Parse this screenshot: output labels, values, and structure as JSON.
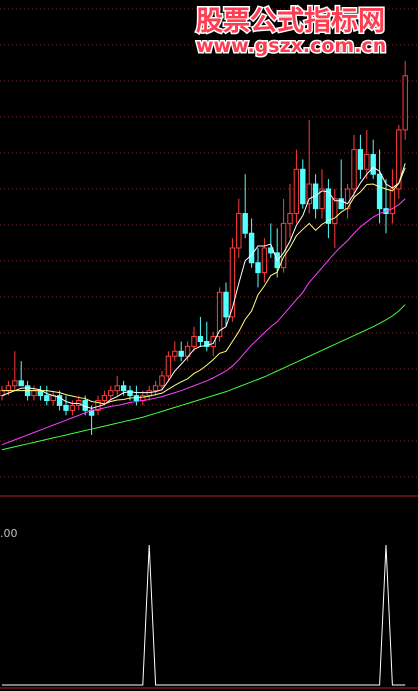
{
  "watermark": {
    "title": "股票公式指标网",
    "url": "www.gszx.com.cn"
  },
  "chart_data": [
    {
      "type": "candlestick",
      "up_color": "#ff3c3c",
      "down_color": "#54ffff",
      "ylim": [
        0,
        100
      ],
      "open": [
        20,
        21,
        22,
        23,
        22,
        20,
        21,
        20,
        19,
        20,
        18,
        17,
        18,
        19,
        17,
        17,
        19,
        20,
        21,
        22,
        21,
        20,
        19,
        20,
        21,
        22,
        24,
        28,
        29,
        28,
        30,
        32,
        31,
        30,
        32,
        41,
        36,
        50,
        57,
        53,
        47,
        45,
        50,
        49,
        46,
        55,
        57,
        66,
        59,
        63,
        58,
        62,
        55,
        60,
        58,
        62,
        70,
        66,
        69,
        65,
        58,
        57,
        62,
        74
      ],
      "high": [
        22,
        23,
        29,
        27,
        23,
        22,
        22,
        22,
        21,
        21,
        20,
        19,
        20,
        20,
        18,
        20,
        21,
        22,
        24,
        23,
        22,
        22,
        21,
        22,
        23,
        25,
        29,
        31,
        31,
        31,
        34,
        36,
        35,
        33,
        42,
        43,
        52,
        60,
        65,
        56,
        50,
        52,
        55,
        54,
        60,
        63,
        70,
        68,
        76,
        65,
        66,
        64,
        62,
        68,
        63,
        73,
        73,
        74,
        72,
        70,
        64,
        66,
        75,
        88
      ],
      "low": [
        19,
        20,
        21,
        22,
        19,
        19,
        19,
        18,
        18,
        17,
        16,
        16,
        17,
        16,
        12,
        16,
        18,
        19,
        20,
        20,
        19,
        18,
        18,
        19,
        20,
        21,
        23,
        27,
        27,
        27,
        29,
        30,
        29,
        28,
        31,
        34,
        35,
        48,
        52,
        46,
        42,
        43,
        48,
        44,
        45,
        52,
        55,
        58,
        57,
        56,
        56,
        52,
        50,
        58,
        56,
        60,
        64,
        64,
        64,
        55,
        53,
        55,
        60,
        72
      ],
      "close": [
        21,
        22,
        23,
        22,
        20,
        21,
        20,
        19,
        20,
        18,
        17,
        18,
        19,
        17,
        16,
        19,
        20,
        21,
        22,
        21,
        20,
        19,
        20,
        21,
        22,
        24,
        28,
        29,
        28,
        30,
        32,
        31,
        30,
        32,
        41,
        36,
        50,
        57,
        53,
        47,
        45,
        50,
        49,
        46,
        55,
        57,
        66,
        59,
        63,
        58,
        62,
        55,
        60,
        58,
        62,
        70,
        66,
        69,
        65,
        58,
        57,
        62,
        74,
        85
      ],
      "ma": [
        {
          "color": "#ffffff",
          "values": [
            20,
            20.5,
            21,
            21.5,
            21.6,
            21.4,
            21.2,
            20.4,
            20,
            19.6,
            18.8,
            18.4,
            18.4,
            17.8,
            17.4,
            17.8,
            18.2,
            19.2,
            19.8,
            20.6,
            20.8,
            20.6,
            20.6,
            20.6,
            20.8,
            21.2,
            23,
            25,
            26.4,
            27.8,
            29.4,
            30,
            30.2,
            30.6,
            33.2,
            34,
            37.8,
            42.8,
            47.4,
            48.6,
            50.4,
            50.4,
            50.8,
            47.4,
            49,
            51.4,
            54.6,
            56.6,
            60,
            60.6,
            61.6,
            61.4,
            59.6,
            59.6,
            59,
            61,
            63.2,
            65,
            66.4,
            65.6,
            63,
            62.2,
            63.2,
            67.2
          ]
        },
        {
          "color": "#ffff80",
          "values": [
            21,
            21,
            21,
            21,
            21,
            21,
            21,
            21,
            20.8,
            20.6,
            20.2,
            19.9,
            19.6,
            19.4,
            18.8,
            18.6,
            18.3,
            18.8,
            19.1,
            19.2,
            19.5,
            19.6,
            19.7,
            19.9,
            20.2,
            20.5,
            21.3,
            22.1,
            22.8,
            23.4,
            24.5,
            25.2,
            26.2,
            27.3,
            28.6,
            29,
            31,
            33,
            35.5,
            37.2,
            40.5,
            42.3,
            44.4,
            45.1,
            48.2,
            50.1,
            52.5,
            53.8,
            55,
            53.6,
            54.8,
            55.6,
            56.1,
            57.3,
            58.1,
            60.3,
            61.4,
            62.9,
            63,
            62.4,
            62,
            61.6,
            63.1,
            66.3
          ]
        },
        {
          "color": "#ff40ff",
          "values": [
            10,
            10.5,
            11,
            11.5,
            12,
            12.5,
            13,
            13.5,
            14,
            14.5,
            15,
            15.5,
            16,
            16.5,
            17,
            17.2,
            17.5,
            17.8,
            18,
            18.3,
            18.6,
            18.8,
            19,
            19.2,
            19.5,
            19.8,
            20.2,
            20.6,
            21,
            21.5,
            22,
            22.5,
            23,
            23.6,
            24.3,
            25,
            26,
            27.3,
            28.8,
            30.3,
            31.5,
            32.8,
            34,
            35,
            36.5,
            38,
            39.5,
            41,
            43,
            44.5,
            46,
            47.5,
            49,
            50.3,
            51.5,
            53,
            54.3,
            55.3,
            56.3,
            57,
            57.5,
            58,
            58.8,
            60
          ]
        },
        {
          "color": "#40ff40",
          "values": [
            9,
            9.3,
            9.6,
            9.9,
            10.2,
            10.5,
            10.8,
            11.1,
            11.4,
            11.7,
            12,
            12.3,
            12.6,
            12.9,
            13.2,
            13.5,
            13.8,
            14.1,
            14.4,
            14.7,
            15,
            15.3,
            15.6,
            16,
            16.4,
            16.8,
            17.2,
            17.6,
            18,
            18.4,
            18.8,
            19.2,
            19.6,
            20,
            20.4,
            20.8,
            21.3,
            21.8,
            22.3,
            22.8,
            23.3,
            23.8,
            24.4,
            25,
            25.6,
            26.2,
            26.8,
            27.4,
            28,
            28.6,
            29.2,
            29.8,
            30.4,
            31,
            31.6,
            32.2,
            32.8,
            33.4,
            34,
            34.7,
            35.4,
            36.2,
            37.2,
            38.5
          ]
        }
      ]
    },
    {
      "type": "line",
      "label": ".00",
      "color": "#ffffff",
      "ylim": [
        0,
        1
      ],
      "values": [
        0,
        0,
        0,
        0,
        0,
        0,
        0,
        0,
        0,
        0,
        0,
        0,
        0,
        0,
        0,
        0,
        0,
        0,
        0,
        0,
        0,
        0,
        0,
        1,
        0,
        0,
        0,
        0,
        0,
        0,
        0,
        0,
        0,
        0,
        0,
        0,
        0,
        0,
        0,
        0,
        0,
        0,
        0,
        0,
        0,
        0,
        0,
        0,
        0,
        0,
        0,
        0,
        0,
        0,
        0,
        0,
        0,
        0,
        0,
        0,
        1,
        0,
        0,
        0
      ]
    }
  ]
}
